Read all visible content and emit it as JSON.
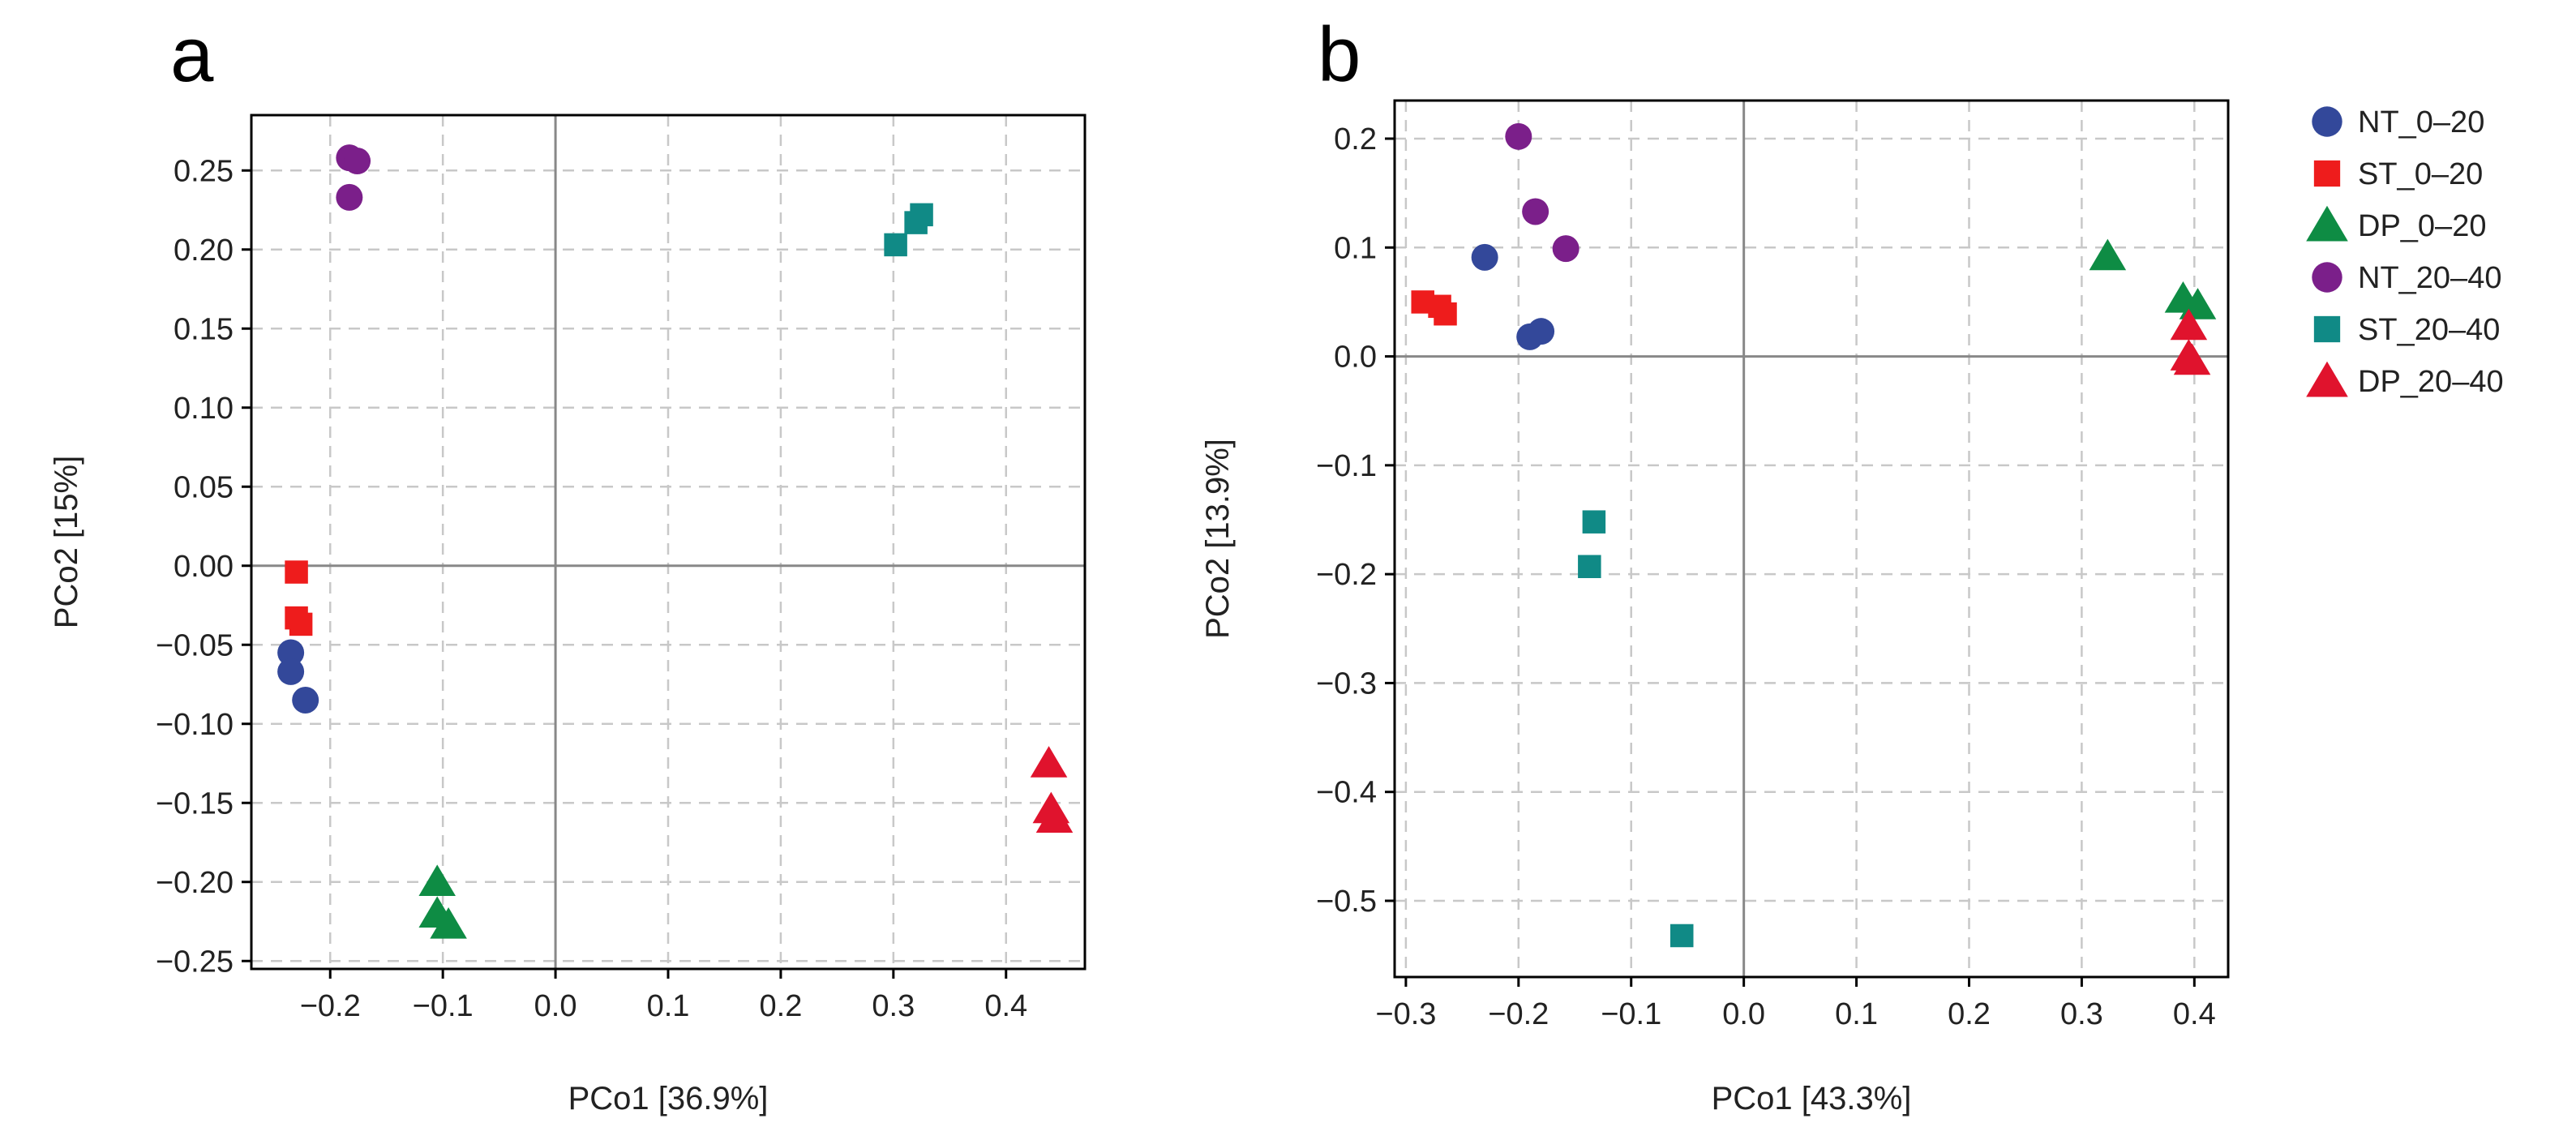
{
  "legend": [
    {
      "label": "NT_0–20",
      "color": "#33489a",
      "shape": "circle"
    },
    {
      "label": "ST_0–20",
      "color": "#ee1c1c",
      "shape": "square"
    },
    {
      "label": "DP_0–20",
      "color": "#0e8c44",
      "shape": "triangle"
    },
    {
      "label": "NT_20–40",
      "color": "#7b1f8a",
      "shape": "circle"
    },
    {
      "label": "ST_20–40",
      "color": "#108a86",
      "shape": "square"
    },
    {
      "label": "DP_20–40",
      "color": "#e0132d",
      "shape": "triangle"
    }
  ],
  "chart_data": [
    {
      "type": "scatter",
      "panel_label": "a",
      "xlabel": "PCo1 [36.9%]",
      "ylabel": "PCo2 [15%]",
      "xlim": [
        -0.27,
        0.47
      ],
      "ylim": [
        -0.255,
        0.285
      ],
      "xticks": [
        -0.2,
        -0.1,
        0.0,
        0.1,
        0.2,
        0.3,
        0.4
      ],
      "xtick_labels": [
        "−0.2",
        "−0.1",
        "0.0",
        "0.1",
        "0.2",
        "0.3",
        "0.4"
      ],
      "yticks": [
        -0.25,
        -0.2,
        -0.15,
        -0.1,
        -0.05,
        0.0,
        0.05,
        0.1,
        0.15,
        0.2,
        0.25
      ],
      "ytick_labels": [
        "−0.25",
        "−0.20",
        "−0.15",
        "−0.10",
        "−0.05",
        "0.00",
        "0.05",
        "0.10",
        "0.15",
        "0.20",
        "0.25"
      ],
      "grid": true,
      "series": [
        {
          "name": "NT_0–20",
          "points": [
            [
              -0.235,
              -0.055
            ],
            [
              -0.235,
              -0.067
            ],
            [
              -0.222,
              -0.085
            ]
          ]
        },
        {
          "name": "ST_0–20",
          "points": [
            [
              -0.23,
              -0.004
            ],
            [
              -0.23,
              -0.033
            ],
            [
              -0.226,
              -0.037
            ]
          ]
        },
        {
          "name": "DP_0–20",
          "points": [
            [
              -0.105,
              -0.2
            ],
            [
              -0.105,
              -0.22
            ],
            [
              -0.095,
              -0.227
            ]
          ]
        },
        {
          "name": "NT_20–40",
          "points": [
            [
              -0.183,
              0.258
            ],
            [
              -0.176,
              0.256
            ],
            [
              -0.183,
              0.233
            ]
          ]
        },
        {
          "name": "ST_20–40",
          "points": [
            [
              0.302,
              0.203
            ],
            [
              0.32,
              0.217
            ],
            [
              0.325,
              0.222
            ]
          ]
        },
        {
          "name": "DP_20–40",
          "points": [
            [
              0.438,
              -0.125
            ],
            [
              0.44,
              -0.154
            ],
            [
              0.443,
              -0.16
            ]
          ]
        }
      ]
    },
    {
      "type": "scatter",
      "panel_label": "b",
      "xlabel": "PCo1 [43.3%]",
      "ylabel": "PCo2 [13.9%]",
      "xlim": [
        -0.31,
        0.43
      ],
      "ylim": [
        -0.57,
        0.235
      ],
      "xticks": [
        -0.3,
        -0.2,
        -0.1,
        0.0,
        0.1,
        0.2,
        0.3,
        0.4
      ],
      "xtick_labels": [
        "−0.3",
        "−0.2",
        "−0.1",
        "0.0",
        "0.1",
        "0.2",
        "0.3",
        "0.4"
      ],
      "yticks": [
        -0.5,
        -0.4,
        -0.3,
        -0.2,
        -0.1,
        0.0,
        0.1,
        0.2
      ],
      "ytick_labels": [
        "−0.5",
        "−0.4",
        "−0.3",
        "−0.2",
        "−0.1",
        "0.0",
        "0.1",
        "0.2"
      ],
      "grid": true,
      "series": [
        {
          "name": "NT_0–20",
          "points": [
            [
              -0.23,
              0.091
            ],
            [
              -0.19,
              0.018
            ],
            [
              -0.18,
              0.023
            ]
          ]
        },
        {
          "name": "ST_0–20",
          "points": [
            [
              -0.285,
              0.05
            ],
            [
              -0.27,
              0.046
            ],
            [
              -0.265,
              0.039
            ]
          ]
        },
        {
          "name": "DP_0–20",
          "points": [
            [
              0.323,
              0.092
            ],
            [
              0.39,
              0.053
            ],
            [
              0.403,
              0.047
            ]
          ]
        },
        {
          "name": "NT_20–40",
          "points": [
            [
              -0.2,
              0.202
            ],
            [
              -0.185,
              0.133
            ],
            [
              -0.158,
              0.099
            ]
          ]
        },
        {
          "name": "ST_20–40",
          "points": [
            [
              -0.133,
              -0.152
            ],
            [
              -0.137,
              -0.193
            ],
            [
              -0.055,
              -0.532
            ]
          ]
        },
        {
          "name": "DP_20–40",
          "points": [
            [
              0.395,
              0.028
            ],
            [
              0.395,
              0.0
            ],
            [
              0.398,
              -0.004
            ]
          ]
        }
      ]
    }
  ]
}
